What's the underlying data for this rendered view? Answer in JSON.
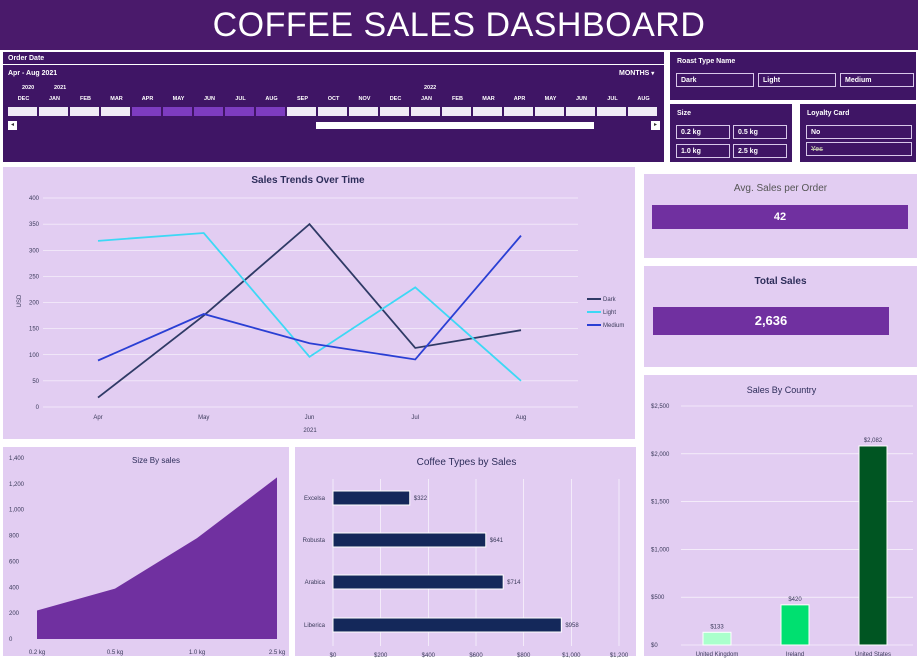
{
  "title": "COFFEE SALES DASHBOARD",
  "timeline": {
    "header": "Order Date",
    "range": "Apr - Aug 2021",
    "period": "MONTHS",
    "years": [
      "2020",
      "2021",
      "2022"
    ],
    "months": [
      "DEC",
      "JAN",
      "FEB",
      "MAR",
      "APR",
      "MAY",
      "JUN",
      "JUL",
      "AUG",
      "SEP",
      "OCT",
      "NOV",
      "DEC",
      "JAN",
      "FEB",
      "MAR",
      "APR",
      "MAY",
      "JUN",
      "JUL",
      "AUG"
    ],
    "selected": [
      4,
      5,
      6,
      7,
      8
    ]
  },
  "roast": {
    "title": "Roast Type Name",
    "options": [
      "Dark",
      "Light",
      "Medium"
    ]
  },
  "size": {
    "title": "Size",
    "options": [
      "0.2 kg",
      "0.5 kg",
      "1.0 kg",
      "2.5 kg"
    ]
  },
  "loyalty": {
    "title": "Loyalty Card",
    "options": [
      "No",
      "Yes"
    ]
  },
  "kpi": {
    "avg_title": "Avg. Sales per Order",
    "avg_value": "42",
    "total_title": "Total Sales",
    "total_value": "2,636"
  },
  "chart_data": [
    {
      "id": "trend",
      "type": "line",
      "title": "Sales Trends Over Time",
      "categories": [
        "Apr",
        "May",
        "Jun",
        "Jul",
        "Aug"
      ],
      "x_group_label": "2021",
      "ylabel": "USD",
      "ylim": [
        0,
        400
      ],
      "yticks": [
        0,
        50,
        100,
        150,
        200,
        250,
        300,
        350,
        400
      ],
      "legend": "right",
      "series": [
        {
          "name": "Dark",
          "color": "#2f3a66",
          "values": [
            18,
            175,
            350,
            113,
            147
          ]
        },
        {
          "name": "Light",
          "color": "#3dd8f5",
          "values": [
            318,
            333,
            96,
            229,
            50
          ]
        },
        {
          "name": "Medium",
          "color": "#2a3fd4",
          "values": [
            89,
            178,
            122,
            91,
            328
          ]
        }
      ]
    },
    {
      "id": "size",
      "type": "area",
      "title": "Size By sales",
      "categories": [
        "0.2 kg",
        "0.5 kg",
        "1.0 kg",
        "2.5 kg"
      ],
      "values": [
        220,
        390,
        780,
        1250
      ],
      "ylim": [
        0,
        1400
      ],
      "yticks": [
        "0",
        "200",
        "400",
        "600",
        "800",
        "1,000",
        "1,200",
        "1,400"
      ],
      "color": "#7030a0"
    },
    {
      "id": "types",
      "type": "bar",
      "orientation": "horizontal",
      "title": "Coffee Types by Sales",
      "categories": [
        "Excelsa",
        "Robusta",
        "Arabica",
        "Liberica"
      ],
      "values": [
        322,
        641,
        714,
        958
      ],
      "labels": [
        "$322",
        "$641",
        "$714",
        "$958"
      ],
      "xlim": [
        0,
        1200
      ],
      "xticks": [
        "$0",
        "$200",
        "$400",
        "$600",
        "$800",
        "$1,000",
        "$1,200"
      ],
      "color": "#14285a"
    },
    {
      "id": "country",
      "type": "bar",
      "title": "Sales By Country",
      "categories": [
        "United Kingdom",
        "Ireland",
        "United States"
      ],
      "values": [
        133,
        420,
        2082
      ],
      "labels": [
        "$133",
        "$420",
        "$2,082"
      ],
      "colors": [
        "#aaffcc",
        "#00e070",
        "#005522"
      ],
      "ylim": [
        0,
        2500
      ],
      "yticks": [
        "$0",
        "$500",
        "$1,000",
        "$1,500",
        "$2,000",
        "$2,500"
      ]
    }
  ]
}
